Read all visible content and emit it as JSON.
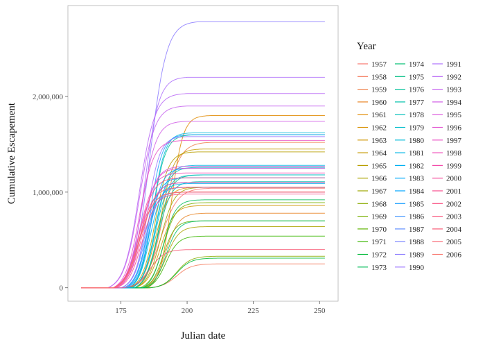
{
  "chart_data": {
    "type": "line",
    "title": "",
    "xlabel": "Julian date",
    "ylabel": "Cumulative Escapement",
    "xlim": [
      155,
      257
    ],
    "ylim": [
      -140000,
      2950000
    ],
    "x_ticks": [
      175,
      200,
      225,
      250
    ],
    "x_tick_labels": [
      "175",
      "200",
      "225",
      "250"
    ],
    "y_ticks": [
      0,
      1000000,
      2000000
    ],
    "y_tick_labels": [
      "0",
      "1,000,000",
      "2,000,000"
    ],
    "grid": false,
    "legend_title": "Year",
    "legend_position": "right",
    "legend_columns": 3,
    "note": "",
    "series": [
      {
        "name": "1957",
        "color": "#F8766D",
        "final": 1040000,
        "start": 176,
        "mid": 190,
        "end": 205
      },
      {
        "name": "1958",
        "color": "#F47A5C",
        "final": 250000,
        "start": 185,
        "mid": 196,
        "end": 210
      },
      {
        "name": "1959",
        "color": "#EE7F4A",
        "final": 1520000,
        "start": 178,
        "mid": 191,
        "end": 205
      },
      {
        "name": "1960",
        "color": "#E88526",
        "final": 780000,
        "start": 183,
        "mid": 192,
        "end": 205
      },
      {
        "name": "1961",
        "color": "#E18A00",
        "final": 1800000,
        "start": 185,
        "mid": 194,
        "end": 205
      },
      {
        "name": "1962",
        "color": "#D89000",
        "final": 1050000,
        "start": 178,
        "mid": 188,
        "end": 200
      },
      {
        "name": "1963",
        "color": "#CF9400",
        "final": 860000,
        "start": 180,
        "mid": 190,
        "end": 203
      },
      {
        "name": "1964",
        "color": "#C49A00",
        "final": 1450000,
        "start": 180,
        "mid": 190,
        "end": 202
      },
      {
        "name": "1965",
        "color": "#B89E00",
        "final": 1420000,
        "start": 178,
        "mid": 188,
        "end": 200
      },
      {
        "name": "1966",
        "color": "#ABA300",
        "final": 640000,
        "start": 183,
        "mid": 192,
        "end": 205
      },
      {
        "name": "1967",
        "color": "#9CA700",
        "final": 1050000,
        "start": 180,
        "mid": 190,
        "end": 203
      },
      {
        "name": "1968",
        "color": "#8BAB00",
        "final": 330000,
        "start": 186,
        "mid": 196,
        "end": 210
      },
      {
        "name": "1969",
        "color": "#77AF00",
        "final": 890000,
        "start": 182,
        "mid": 191,
        "end": 204
      },
      {
        "name": "1970",
        "color": "#5EB300",
        "final": 700000,
        "start": 183,
        "mid": 191,
        "end": 203
      },
      {
        "name": "1971",
        "color": "#3AB600",
        "final": 540000,
        "start": 184,
        "mid": 192,
        "end": 205
      },
      {
        "name": "1972",
        "color": "#00BA38",
        "final": 310000,
        "start": 186,
        "mid": 196,
        "end": 210
      },
      {
        "name": "1973",
        "color": "#00BC58",
        "final": 920000,
        "start": 183,
        "mid": 191,
        "end": 204
      },
      {
        "name": "1974",
        "color": "#00BE70",
        "final": 700000,
        "start": 184,
        "mid": 192,
        "end": 205
      },
      {
        "name": "1975",
        "color": "#00BF85",
        "final": 1180000,
        "start": 180,
        "mid": 189,
        "end": 202
      },
      {
        "name": "1976",
        "color": "#00C098",
        "final": 1600000,
        "start": 178,
        "mid": 187,
        "end": 200
      },
      {
        "name": "1977",
        "color": "#00C0AA",
        "final": 1110000,
        "start": 180,
        "mid": 189,
        "end": 202
      },
      {
        "name": "1978",
        "color": "#00BFBB",
        "final": 1260000,
        "start": 179,
        "mid": 188,
        "end": 201
      },
      {
        "name": "1979",
        "color": "#00BDCB",
        "final": 1180000,
        "start": 179,
        "mid": 188,
        "end": 201
      },
      {
        "name": "1980",
        "color": "#00BAD9",
        "final": 1620000,
        "start": 178,
        "mid": 187,
        "end": 199
      },
      {
        "name": "1981",
        "color": "#00B6E6",
        "final": 1280000,
        "start": 179,
        "mid": 188,
        "end": 200
      },
      {
        "name": "1982",
        "color": "#00B0F2",
        "final": 1090000,
        "start": 178,
        "mid": 186,
        "end": 198
      },
      {
        "name": "1983",
        "color": "#00A9FB",
        "final": 1250000,
        "start": 177,
        "mid": 186,
        "end": 198
      },
      {
        "name": "1984",
        "color": "#00A5FF",
        "final": 1150000,
        "start": 176,
        "mid": 185,
        "end": 197
      },
      {
        "name": "1985",
        "color": "#1A9FFF",
        "final": 1600000,
        "start": 177,
        "mid": 186,
        "end": 198
      },
      {
        "name": "1986",
        "color": "#4496FF",
        "final": 1050000,
        "start": 176,
        "mid": 185,
        "end": 196
      },
      {
        "name": "1987",
        "color": "#5F8DFF",
        "final": 1100000,
        "start": 175,
        "mid": 184,
        "end": 196
      },
      {
        "name": "1988",
        "color": "#7A84FF",
        "final": 1000000,
        "start": 175,
        "mid": 184,
        "end": 196
      },
      {
        "name": "1989",
        "color": "#8C7DFF",
        "final": 2780000,
        "start": 172,
        "mid": 186,
        "end": 200
      },
      {
        "name": "1990",
        "color": "#9D76FF",
        "final": 1580000,
        "start": 175,
        "mid": 185,
        "end": 196
      },
      {
        "name": "1991",
        "color": "#AD6FFC",
        "final": 2200000,
        "start": 172,
        "mid": 184,
        "end": 196
      },
      {
        "name": "1992",
        "color": "#B967F6",
        "final": 2030000,
        "start": 170,
        "mid": 182,
        "end": 196
      },
      {
        "name": "1993",
        "color": "#C561EF",
        "final": 1900000,
        "start": 170,
        "mid": 182,
        "end": 196
      },
      {
        "name": "1994",
        "color": "#D05CE6",
        "final": 1740000,
        "start": 172,
        "mid": 183,
        "end": 196
      },
      {
        "name": "1995",
        "color": "#DA57DC",
        "final": 1270000,
        "start": 172,
        "mid": 183,
        "end": 196
      },
      {
        "name": "1996",
        "color": "#E253D1",
        "final": 1250000,
        "start": 173,
        "mid": 183,
        "end": 196
      },
      {
        "name": "1997",
        "color": "#E94FC4",
        "final": 1540000,
        "start": 172,
        "mid": 182,
        "end": 196
      },
      {
        "name": "1998",
        "color": "#EF4DB8",
        "final": 1200000,
        "start": 172,
        "mid": 182,
        "end": 196
      },
      {
        "name": "1999",
        "color": "#F34CAA",
        "final": 1000000,
        "start": 172,
        "mid": 182,
        "end": 196
      },
      {
        "name": "2000",
        "color": "#F64B9C",
        "final": 1100000,
        "start": 172,
        "mid": 183,
        "end": 196
      },
      {
        "name": "2001",
        "color": "#F84C8E",
        "final": 980000,
        "start": 173,
        "mid": 183,
        "end": 196
      },
      {
        "name": "2002",
        "color": "#F94E80",
        "final": 1150000,
        "start": 172,
        "mid": 182,
        "end": 196
      },
      {
        "name": "2003",
        "color": "#F9537A",
        "final": 1050000,
        "start": 172,
        "mid": 182,
        "end": 196
      },
      {
        "name": "2004",
        "color": "#F85A75",
        "final": 400000,
        "start": 176,
        "mid": 186,
        "end": 200
      },
      {
        "name": "2005",
        "color": "#F86672",
        "final": 1000000,
        "start": 172,
        "mid": 182,
        "end": 196
      },
      {
        "name": "2006",
        "color": "#F8766D",
        "final": 1000000,
        "start": 172,
        "mid": 182,
        "end": 196
      }
    ]
  }
}
